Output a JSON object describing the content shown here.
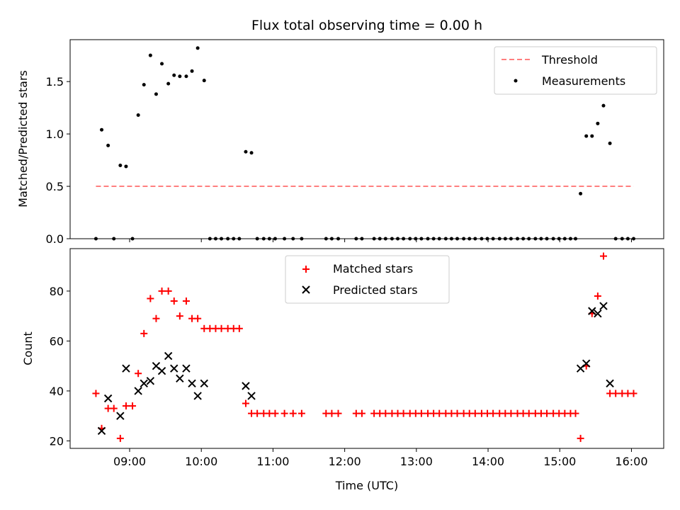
{
  "chart_data": {
    "title": "Flux total observing time = 0.00 h",
    "xlabel": "Time (UTC)",
    "x_unit": "hours UTC",
    "xlim": [
      8.17,
      16.45
    ],
    "xticks": [
      {
        "value": 9,
        "label": "09:00"
      },
      {
        "value": 10,
        "label": "10:00"
      },
      {
        "value": 11,
        "label": "11:00"
      },
      {
        "value": 12,
        "label": "12:00"
      },
      {
        "value": 13,
        "label": "13:00"
      },
      {
        "value": 14,
        "label": "14:00"
      },
      {
        "value": 15,
        "label": "15:00"
      },
      {
        "value": 16,
        "label": "16:00"
      }
    ],
    "x": [
      8.53,
      8.61,
      8.7,
      8.78,
      8.87,
      8.95,
      9.04,
      9.12,
      9.2,
      9.29,
      9.37,
      9.45,
      9.54,
      9.62,
      9.7,
      9.79,
      9.87,
      9.95,
      10.04,
      10.12,
      10.2,
      10.28,
      10.37,
      10.45,
      10.53,
      10.62,
      10.7,
      10.78,
      10.87,
      10.95,
      11.03,
      11.16,
      11.28,
      11.4,
      11.74,
      11.82,
      11.91,
      12.16,
      12.24,
      12.41,
      12.49,
      12.57,
      12.66,
      12.74,
      12.82,
      12.91,
      12.99,
      13.07,
      13.16,
      13.24,
      13.32,
      13.41,
      13.49,
      13.57,
      13.66,
      13.74,
      13.82,
      13.91,
      13.99,
      14.07,
      14.16,
      14.24,
      14.32,
      14.41,
      14.49,
      14.57,
      14.66,
      14.74,
      14.82,
      14.91,
      14.99,
      15.07,
      15.15,
      15.22,
      15.29,
      15.37,
      15.45,
      15.53,
      15.61,
      15.7,
      15.78,
      15.87,
      15.95,
      16.03
    ],
    "panels": [
      {
        "type": "scatter",
        "ylabel": "Matched/Predicted stars",
        "ylim": [
          0,
          1.9
        ],
        "yticks": [
          {
            "value": 0,
            "label": "0.0"
          },
          {
            "value": 0.5,
            "label": "0.5"
          },
          {
            "value": 1.0,
            "label": "1.0"
          },
          {
            "value": 1.5,
            "label": "1.5"
          }
        ],
        "legend_position": "top-right",
        "threshold": {
          "name": "Threshold",
          "value": 0.5,
          "x_range": [
            8.53,
            16.03
          ],
          "color": "#ff7f7f",
          "style": "dashed"
        },
        "series": [
          {
            "name": "Measurements",
            "marker": "dot",
            "color": "#000000",
            "values": [
              0,
              1.04,
              0.89,
              0,
              0.7,
              0.69,
              0,
              1.18,
              1.47,
              1.75,
              1.38,
              1.67,
              1.48,
              1.56,
              1.55,
              1.55,
              1.6,
              1.82,
              1.51,
              0,
              0,
              0,
              0,
              0,
              0,
              0.83,
              0.82,
              0,
              0,
              0,
              0,
              0,
              0,
              0,
              0,
              0,
              0,
              0,
              0,
              0,
              0,
              0,
              0,
              0,
              0,
              0,
              0,
              0,
              0,
              0,
              0,
              0,
              0,
              0,
              0,
              0,
              0,
              0,
              0,
              0,
              0,
              0,
              0,
              0,
              0,
              0,
              0,
              0,
              0,
              0,
              0,
              0,
              0,
              0,
              0.43,
              0.98,
              0.98,
              1.1,
              1.27,
              0.91,
              0,
              0,
              0,
              0
            ]
          }
        ]
      },
      {
        "type": "scatter",
        "ylabel": "Count",
        "ylim": [
          17,
          97
        ],
        "yticks": [
          {
            "value": 20,
            "label": "20"
          },
          {
            "value": 40,
            "label": "40"
          },
          {
            "value": 60,
            "label": "60"
          },
          {
            "value": 80,
            "label": "80"
          }
        ],
        "legend_position": "top-center",
        "series": [
          {
            "name": "Matched stars",
            "marker": "plus",
            "color": "#ff0000",
            "values": [
              39,
              25,
              33,
              33,
              21,
              34,
              34,
              47,
              63,
              77,
              69,
              80,
              80,
              76,
              70,
              76,
              69,
              69,
              65,
              65,
              65,
              65,
              65,
              65,
              65,
              35,
              31,
              31,
              31,
              31,
              31,
              31,
              31,
              31,
              31,
              31,
              31,
              31,
              31,
              31,
              31,
              31,
              31,
              31,
              31,
              31,
              31,
              31,
              31,
              31,
              31,
              31,
              31,
              31,
              31,
              31,
              31,
              31,
              31,
              31,
              31,
              31,
              31,
              31,
              31,
              31,
              31,
              31,
              31,
              31,
              31,
              31,
              31,
              31,
              21,
              50,
              71,
              78,
              94,
              39,
              39,
              39,
              39,
              39
            ]
          },
          {
            "name": "Predicted stars",
            "marker": "x",
            "color": "#000000",
            "x": [
              8.61,
              8.7,
              8.87,
              8.95,
              9.12,
              9.2,
              9.29,
              9.37,
              9.45,
              9.54,
              9.62,
              9.7,
              9.79,
              9.87,
              9.95,
              10.04,
              10.62,
              10.7,
              15.29,
              15.37,
              15.45,
              15.53,
              15.61,
              15.7
            ],
            "values": [
              24,
              37,
              30,
              49,
              40,
              43,
              44,
              50,
              48,
              54,
              49,
              45,
              49,
              43,
              38,
              43,
              42,
              38,
              49,
              51,
              72,
              71,
              74,
              43
            ]
          }
        ]
      }
    ]
  }
}
